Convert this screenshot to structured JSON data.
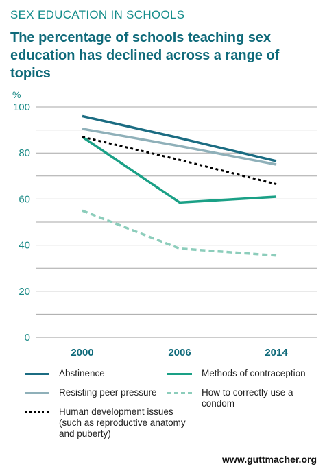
{
  "header": {
    "kicker": "SEX EDUCATION IN SCHOOLS",
    "title": "The percentage of schools teaching sex education has declined across a range of topics"
  },
  "source": "www.guttmacher.org",
  "chart_data": {
    "type": "line",
    "title": "The percentage of schools teaching sex education has declined across a range of topics",
    "ylabel": "%",
    "xlabel": "",
    "categories": [
      "2000",
      "2006",
      "2014"
    ],
    "ylim": [
      0,
      100
    ],
    "yticks": [
      0,
      20,
      40,
      60,
      80,
      100
    ],
    "grid": true,
    "legend_position": "bottom",
    "series": [
      {
        "name": "Abstinence",
        "values": [
          96,
          86.5,
          76.5
        ],
        "color": "#1b6c82",
        "dash": "solid",
        "width": 3.5
      },
      {
        "name": "Methods of contraception",
        "values": [
          87,
          58.5,
          61
        ],
        "color": "#1aa086",
        "dash": "solid",
        "width": 3.5
      },
      {
        "name": "Resisting peer pressure",
        "values": [
          90.5,
          83,
          75
        ],
        "color": "#8fb0b9",
        "dash": "solid",
        "width": 3.5
      },
      {
        "name": "How to correctly use a condom",
        "values": [
          55,
          38.5,
          35.5
        ],
        "color": "#8ccdbb",
        "dash": "8,5",
        "width": 3.5
      },
      {
        "name": "Human development issues (such as reproductive anatomy and puberty)",
        "values": [
          87,
          77,
          66.5
        ],
        "color": "#000000",
        "dash": "4,4",
        "width": 3
      }
    ]
  }
}
